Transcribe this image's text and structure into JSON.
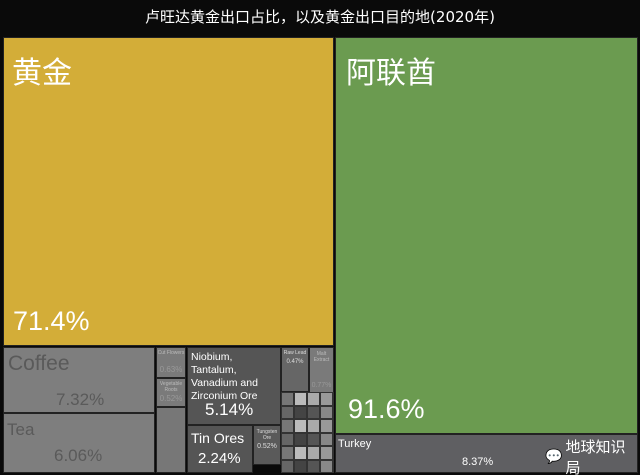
{
  "title": "卢旺达黄金出口占比，以及黄金出口目的地(2020年)",
  "watermark": "地球知识局",
  "colors": {
    "gold": "#d3ad38",
    "green": "#6b9b50",
    "gray": "#7e7e7e",
    "dark": "#555555",
    "turkey": "#5f5f62"
  },
  "chart_data": [
    {
      "type": "treemap",
      "items": [
        {
          "name": "黄金",
          "value": "71.4%"
        },
        {
          "name": "Coffee",
          "value": "7.32%"
        },
        {
          "name": "Tea",
          "value": "6.06%"
        },
        {
          "name": "Niobium, Tantalum, Vanadium and Zirconium Ore",
          "value": "5.14%"
        },
        {
          "name": "Tin Ores",
          "value": "2.24%"
        },
        {
          "name": "Tungsten Ore",
          "value": "0.52%"
        },
        {
          "name": "Cut Flowers",
          "value": "0.63%"
        },
        {
          "name": "Vegetable Roots",
          "value": "0.52%"
        },
        {
          "name": "Raw Lead",
          "value": "0.47%"
        },
        {
          "name": "Malt Extract",
          "value": "0.77%"
        }
      ]
    },
    {
      "type": "treemap",
      "items": [
        {
          "name": "阿联酋",
          "value": "91.6%"
        },
        {
          "name": "Turkey",
          "value": "8.37%"
        }
      ]
    }
  ]
}
